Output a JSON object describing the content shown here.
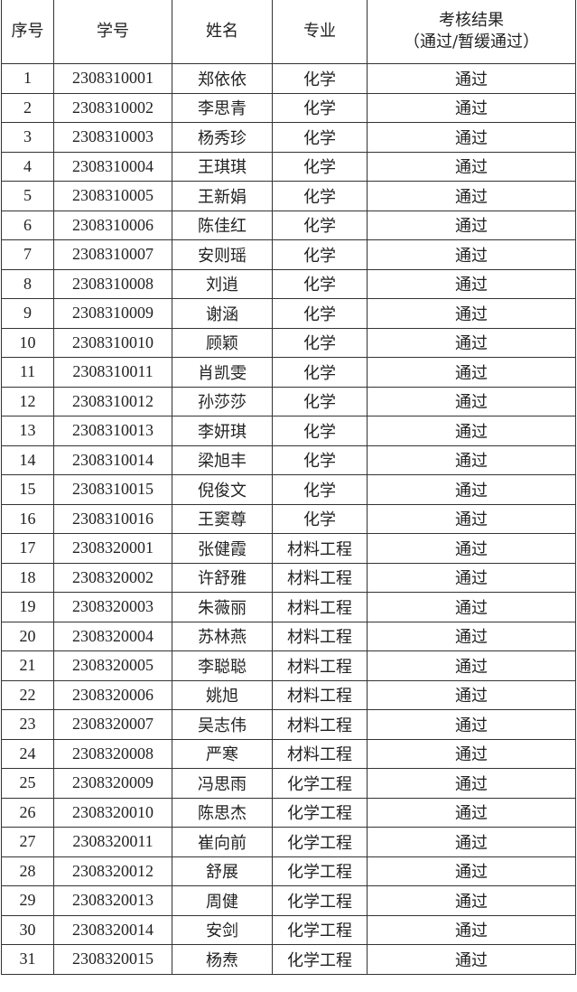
{
  "headers": [
    "序号",
    "学号",
    "姓名",
    "专业",
    "考核结果",
    "（通过/暂缓通过）"
  ],
  "rows": [
    [
      "1",
      "2308310001",
      "郑依依",
      "化学",
      "通过"
    ],
    [
      "2",
      "2308310002",
      "李思青",
      "化学",
      "通过"
    ],
    [
      "3",
      "2308310003",
      "杨秀珍",
      "化学",
      "通过"
    ],
    [
      "4",
      "2308310004",
      "王琪琪",
      "化学",
      "通过"
    ],
    [
      "5",
      "2308310005",
      "王新娟",
      "化学",
      "通过"
    ],
    [
      "6",
      "2308310006",
      "陈佳红",
      "化学",
      "通过"
    ],
    [
      "7",
      "2308310007",
      "安则瑶",
      "化学",
      "通过"
    ],
    [
      "8",
      "2308310008",
      "刘逍",
      "化学",
      "通过"
    ],
    [
      "9",
      "2308310009",
      "谢涵",
      "化学",
      "通过"
    ],
    [
      "10",
      "2308310010",
      "顾颖",
      "化学",
      "通过"
    ],
    [
      "11",
      "2308310011",
      "肖凯雯",
      "化学",
      "通过"
    ],
    [
      "12",
      "2308310012",
      "孙莎莎",
      "化学",
      "通过"
    ],
    [
      "13",
      "2308310013",
      "李妍琪",
      "化学",
      "通过"
    ],
    [
      "14",
      "2308310014",
      "梁旭丰",
      "化学",
      "通过"
    ],
    [
      "15",
      "2308310015",
      "倪俊文",
      "化学",
      "通过"
    ],
    [
      "16",
      "2308310016",
      "王窦尊",
      "化学",
      "通过"
    ],
    [
      "17",
      "2308320001",
      "张健霞",
      "材料工程",
      "通过"
    ],
    [
      "18",
      "2308320002",
      "许舒雅",
      "材料工程",
      "通过"
    ],
    [
      "19",
      "2308320003",
      "朱薇丽",
      "材料工程",
      "通过"
    ],
    [
      "20",
      "2308320004",
      "苏林燕",
      "材料工程",
      "通过"
    ],
    [
      "21",
      "2308320005",
      "李聪聪",
      "材料工程",
      "通过"
    ],
    [
      "22",
      "2308320006",
      "姚旭",
      "材料工程",
      "通过"
    ],
    [
      "23",
      "2308320007",
      "吴志伟",
      "材料工程",
      "通过"
    ],
    [
      "24",
      "2308320008",
      "严寒",
      "材料工程",
      "通过"
    ],
    [
      "25",
      "2308320009",
      "冯思雨",
      "化学工程",
      "通过"
    ],
    [
      "26",
      "2308320010",
      "陈思杰",
      "化学工程",
      "通过"
    ],
    [
      "27",
      "2308320011",
      "崔向前",
      "化学工程",
      "通过"
    ],
    [
      "28",
      "2308320012",
      "舒展",
      "化学工程",
      "通过"
    ],
    [
      "29",
      "2308320013",
      "周健",
      "化学工程",
      "通过"
    ],
    [
      "30",
      "2308320014",
      "安剑",
      "化学工程",
      "通过"
    ],
    [
      "31",
      "2308320015",
      "杨焘",
      "化学工程",
      "通过"
    ]
  ]
}
